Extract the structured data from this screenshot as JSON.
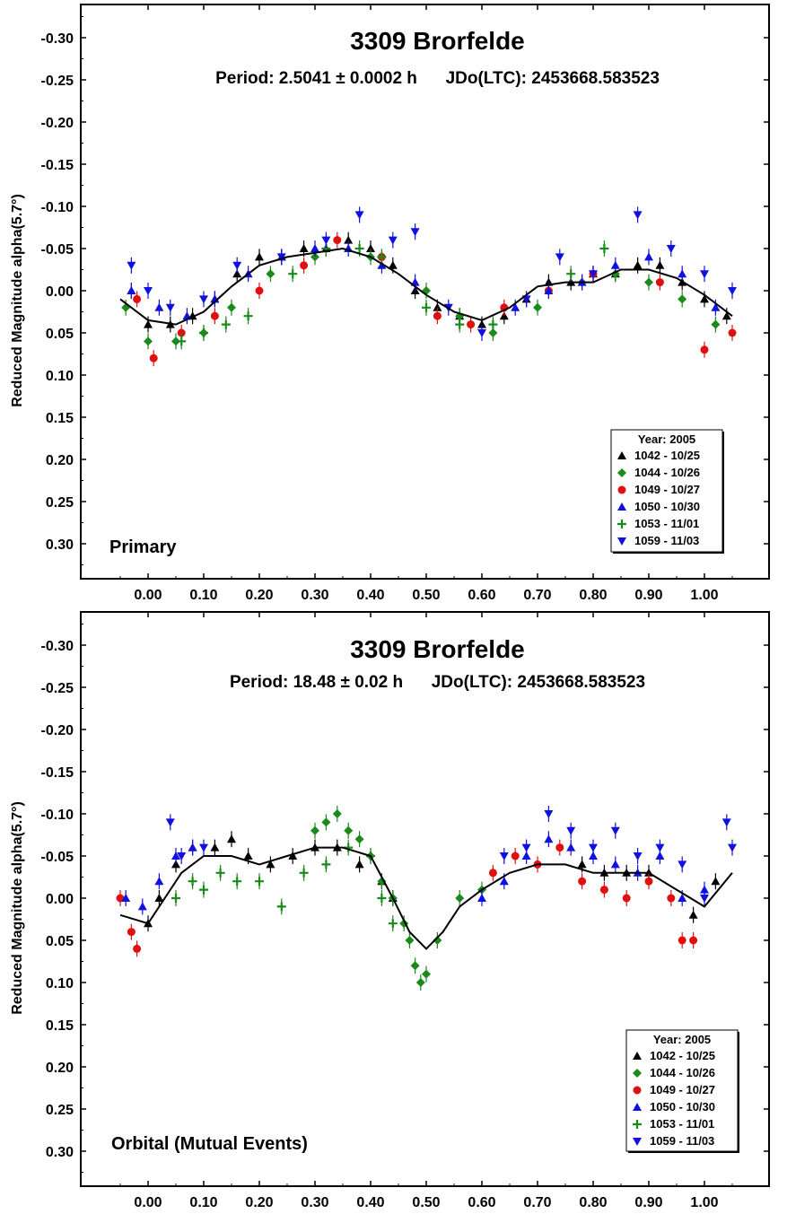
{
  "chart_data": [
    {
      "type": "scatter",
      "title": "3309 Brorfelde",
      "subtitle": "Period: 2.5041 ± 0.0002 h      JDo(LTC): 2453668.583523",
      "panel_label": "Primary",
      "xlabel": "",
      "ylabel": "Reduced Magnitude alpha(5.7°)",
      "xlim": [
        -0.12,
        1.12
      ],
      "ylim": [
        -0.33,
        0.34
      ],
      "y_inverted": true,
      "x_ticks": [
        "0.00",
        "0.10",
        "0.20",
        "0.30",
        "0.40",
        "0.50",
        "0.60",
        "0.70",
        "0.80",
        "0.90",
        "1.00"
      ],
      "y_ticks": [
        "-0.30",
        "-0.25",
        "-0.20",
        "-0.15",
        "-0.10",
        "-0.05",
        "0.00",
        "0.05",
        "0.10",
        "0.15",
        "0.20",
        "0.25",
        "0.30"
      ],
      "legend": {
        "title": "Year: 2005",
        "entries": [
          "1042 - 10/25",
          "1044 - 10/26",
          "1049 - 10/27",
          "1050 - 10/30",
          "1053 - 11/01",
          "1059 - 11/03"
        ],
        "position": "bottom-right"
      },
      "fit_curve": {
        "x": [
          -0.05,
          0.0,
          0.05,
          0.1,
          0.15,
          0.2,
          0.25,
          0.3,
          0.35,
          0.4,
          0.45,
          0.5,
          0.55,
          0.6,
          0.65,
          0.7,
          0.75,
          0.8,
          0.85,
          0.9,
          0.95,
          1.0,
          1.05
        ],
        "y": [
          0.01,
          0.035,
          0.04,
          0.025,
          -0.005,
          -0.03,
          -0.04,
          -0.045,
          -0.05,
          -0.04,
          -0.02,
          0.005,
          0.025,
          0.035,
          0.02,
          -0.005,
          -0.01,
          -0.01,
          -0.025,
          -0.025,
          -0.015,
          0.005,
          0.03
        ]
      },
      "series": [
        {
          "name": "1042 - 10/25",
          "color": "#000000",
          "marker": "triangle-up",
          "x": [
            -0.03,
            0.0,
            0.04,
            0.08,
            0.12,
            0.16,
            0.2,
            0.24,
            0.28,
            0.32,
            0.36,
            0.4,
            0.44,
            0.48,
            0.52,
            0.56,
            0.6,
            0.64,
            0.68,
            0.72,
            0.76,
            0.8,
            0.84,
            0.88,
            0.92,
            0.96,
            1.0,
            1.04
          ],
          "y": [
            0.0,
            0.04,
            0.04,
            0.03,
            0.01,
            -0.02,
            -0.04,
            -0.04,
            -0.05,
            -0.05,
            -0.06,
            -0.05,
            -0.03,
            0.0,
            0.02,
            0.03,
            0.04,
            0.03,
            0.01,
            -0.01,
            -0.01,
            -0.02,
            -0.02,
            -0.03,
            -0.03,
            -0.01,
            0.01,
            0.03
          ]
        },
        {
          "name": "1044 - 10/26",
          "color": "#1a8a1a",
          "marker": "diamond",
          "x": [
            -0.04,
            0.0,
            0.05,
            0.1,
            0.15,
            0.22,
            0.3,
            0.4,
            0.5,
            0.56,
            0.62,
            0.7,
            0.78,
            0.84,
            0.9,
            0.96,
            1.02
          ],
          "y": [
            0.02,
            0.06,
            0.06,
            0.05,
            0.02,
            -0.02,
            -0.04,
            -0.04,
            0.0,
            0.03,
            0.05,
            0.02,
            -0.01,
            -0.02,
            -0.01,
            0.01,
            0.04
          ]
        },
        {
          "name": "1049 - 10/27",
          "color": "#e01010",
          "marker": "circle",
          "x": [
            -0.02,
            0.01,
            0.06,
            0.12,
            0.2,
            0.28,
            0.34,
            0.42,
            0.52,
            0.58,
            0.64,
            0.72,
            0.8,
            0.92,
            1.0,
            1.05
          ],
          "y": [
            0.01,
            0.08,
            0.05,
            0.03,
            0.0,
            -0.03,
            -0.06,
            -0.04,
            0.03,
            0.04,
            0.02,
            0.0,
            -0.02,
            -0.01,
            0.07,
            0.05
          ]
        },
        {
          "name": "1050 - 10/30",
          "color": "#1010e0",
          "marker": "triangle-up",
          "x": [
            -0.03,
            0.02,
            0.07,
            0.12,
            0.18,
            0.24,
            0.3,
            0.36,
            0.42,
            0.48,
            0.66,
            0.72,
            0.78,
            0.84,
            0.9,
            0.96,
            1.02
          ],
          "y": [
            0.0,
            0.02,
            0.03,
            0.01,
            -0.02,
            -0.04,
            -0.05,
            -0.05,
            -0.03,
            -0.01,
            0.02,
            0.0,
            -0.01,
            -0.03,
            -0.04,
            -0.02,
            0.02
          ]
        },
        {
          "name": "1053 - 11/01",
          "color": "#1a8a1a",
          "marker": "plus",
          "x": [
            0.06,
            0.1,
            0.14,
            0.18,
            0.26,
            0.32,
            0.38,
            0.42,
            0.5,
            0.56,
            0.62,
            0.76,
            0.82
          ],
          "y": [
            0.06,
            0.05,
            0.04,
            0.03,
            -0.02,
            -0.05,
            -0.05,
            -0.04,
            0.02,
            0.04,
            0.04,
            -0.02,
            -0.05
          ]
        },
        {
          "name": "1059 - 11/03",
          "color": "#1010e0",
          "marker": "triangle-down",
          "x": [
            -0.03,
            0.0,
            0.04,
            0.1,
            0.16,
            0.24,
            0.32,
            0.38,
            0.44,
            0.48,
            0.54,
            0.6,
            0.68,
            0.74,
            0.8,
            0.88,
            0.94,
            1.0,
            1.05
          ],
          "y": [
            -0.03,
            0.0,
            0.02,
            0.01,
            -0.03,
            -0.04,
            -0.06,
            -0.09,
            -0.06,
            -0.07,
            0.02,
            0.05,
            0.01,
            -0.04,
            -0.02,
            -0.09,
            -0.05,
            -0.02,
            0.0
          ]
        }
      ]
    },
    {
      "type": "scatter",
      "title": "3309 Brorfelde",
      "subtitle": "Period: 18.48 ± 0.02 h      JDo(LTC): 2453668.583523",
      "panel_label": "Orbital (Mutual Events)",
      "xlabel": "",
      "ylabel": "Reduced Magnitude alpha(5.7°)",
      "xlim": [
        -0.12,
        1.12
      ],
      "ylim": [
        -0.33,
        0.34
      ],
      "y_inverted": true,
      "x_ticks": [
        "0.00",
        "0.10",
        "0.20",
        "0.30",
        "0.40",
        "0.50",
        "0.60",
        "0.70",
        "0.80",
        "0.90",
        "1.00"
      ],
      "y_ticks": [
        "-0.30",
        "-0.25",
        "-0.20",
        "-0.15",
        "-0.10",
        "-0.05",
        "0.00",
        "0.05",
        "0.10",
        "0.15",
        "0.20",
        "0.25",
        "0.30"
      ],
      "legend": {
        "title": "Year: 2005",
        "entries": [
          "1042 - 10/25",
          "1044 - 10/26",
          "1049 - 10/27",
          "1050 - 10/30",
          "1053 - 11/01",
          "1059 - 11/03"
        ],
        "position": "bottom-right"
      },
      "fit_curve": {
        "x": [
          -0.05,
          0.0,
          0.03,
          0.06,
          0.1,
          0.15,
          0.2,
          0.25,
          0.3,
          0.35,
          0.4,
          0.44,
          0.47,
          0.5,
          0.53,
          0.56,
          0.6,
          0.65,
          0.7,
          0.75,
          0.8,
          0.85,
          0.9,
          0.95,
          1.0,
          1.05
        ],
        "y": [
          0.02,
          0.03,
          0.0,
          -0.03,
          -0.05,
          -0.05,
          -0.04,
          -0.05,
          -0.06,
          -0.06,
          -0.05,
          0.0,
          0.04,
          0.06,
          0.04,
          0.01,
          -0.01,
          -0.03,
          -0.04,
          -0.04,
          -0.03,
          -0.03,
          -0.03,
          -0.01,
          0.01,
          -0.03
        ]
      },
      "series": [
        {
          "name": "1042 - 10/25",
          "color": "#000000",
          "marker": "triangle-up",
          "x": [
            0.0,
            0.02,
            0.05,
            0.08,
            0.12,
            0.15,
            0.18,
            0.22,
            0.26,
            0.3,
            0.34,
            0.38,
            0.42,
            0.44,
            0.78,
            0.82,
            0.86,
            0.9,
            0.98,
            1.02
          ],
          "y": [
            0.03,
            0.0,
            -0.04,
            -0.06,
            -0.06,
            -0.07,
            -0.05,
            -0.04,
            -0.05,
            -0.06,
            -0.06,
            -0.04,
            -0.02,
            0.0,
            -0.04,
            -0.03,
            -0.03,
            -0.03,
            0.02,
            -0.02
          ]
        },
        {
          "name": "1044 - 10/26",
          "color": "#1a8a1a",
          "marker": "diamond",
          "x": [
            0.3,
            0.32,
            0.34,
            0.36,
            0.38,
            0.4,
            0.42,
            0.44,
            0.46,
            0.47,
            0.48,
            0.49,
            0.5,
            0.52,
            0.56,
            0.6
          ],
          "y": [
            -0.08,
            -0.09,
            -0.1,
            -0.08,
            -0.07,
            -0.05,
            -0.02,
            0.0,
            0.03,
            0.05,
            0.08,
            0.1,
            0.09,
            0.05,
            0.0,
            -0.01
          ]
        },
        {
          "name": "1049 - 10/27",
          "color": "#e01010",
          "marker": "circle",
          "x": [
            -0.05,
            -0.03,
            -0.02,
            0.62,
            0.66,
            0.7,
            0.74,
            0.78,
            0.82,
            0.86,
            0.9,
            0.94,
            0.96,
            0.98
          ],
          "y": [
            0.0,
            0.04,
            0.06,
            -0.03,
            -0.05,
            -0.04,
            -0.06,
            -0.02,
            -0.01,
            0.0,
            -0.02,
            0.0,
            0.05,
            0.05
          ]
        },
        {
          "name": "1050 - 10/30",
          "color": "#1010e0",
          "marker": "triangle-up",
          "x": [
            -0.04,
            -0.01,
            0.02,
            0.05,
            0.08,
            0.6,
            0.64,
            0.68,
            0.72,
            0.76,
            0.8,
            0.84,
            0.88,
            0.92,
            0.96,
            1.0
          ],
          "y": [
            0.0,
            0.01,
            -0.02,
            -0.05,
            -0.06,
            0.0,
            -0.02,
            -0.05,
            -0.07,
            -0.06,
            -0.05,
            -0.04,
            -0.03,
            -0.05,
            0.0,
            -0.01
          ]
        },
        {
          "name": "1053 - 11/01",
          "color": "#1a8a1a",
          "marker": "plus",
          "x": [
            0.05,
            0.08,
            0.1,
            0.13,
            0.16,
            0.2,
            0.24,
            0.28,
            0.32,
            0.36,
            0.4,
            0.42,
            0.44
          ],
          "y": [
            0.0,
            -0.02,
            -0.01,
            -0.03,
            -0.02,
            -0.02,
            0.01,
            -0.03,
            -0.04,
            -0.06,
            -0.05,
            0.0,
            0.03
          ]
        },
        {
          "name": "1059 - 11/03",
          "color": "#1010e0",
          "marker": "triangle-down",
          "x": [
            0.04,
            0.06,
            0.1,
            0.64,
            0.68,
            0.72,
            0.76,
            0.8,
            0.84,
            0.88,
            0.92,
            0.96,
            1.0,
            1.04,
            1.05
          ],
          "y": [
            -0.09,
            -0.05,
            -0.06,
            -0.05,
            -0.06,
            -0.1,
            -0.08,
            -0.06,
            -0.08,
            -0.05,
            -0.06,
            -0.04,
            0.0,
            -0.09,
            -0.06
          ]
        }
      ]
    }
  ]
}
